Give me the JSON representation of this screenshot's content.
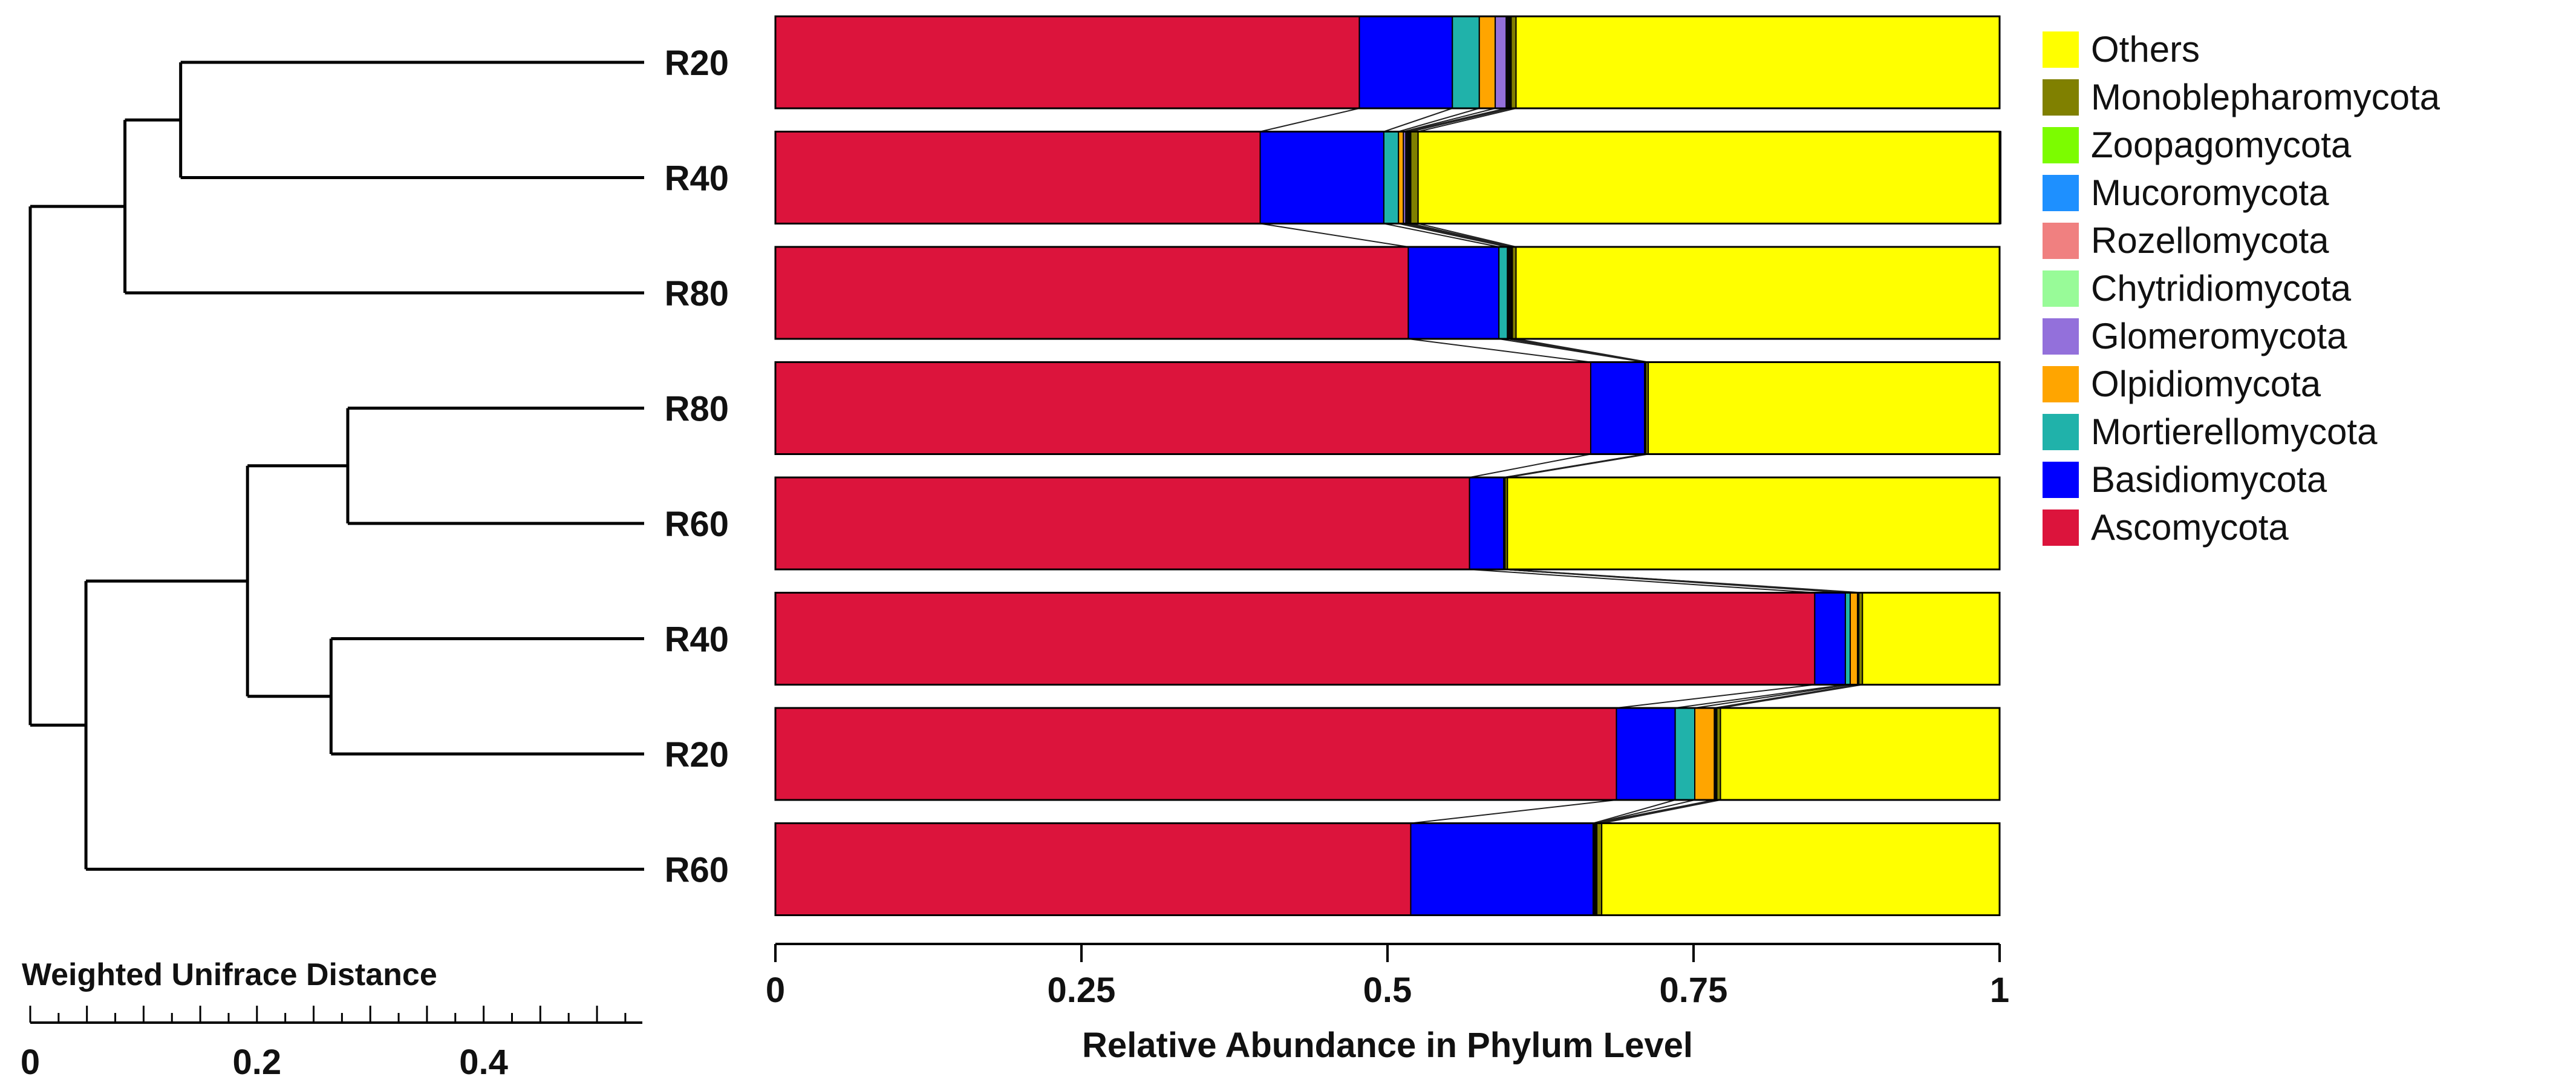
{
  "chart_data": {
    "type": "bar",
    "orientation": "horizontal",
    "stacked": true,
    "xlabel": "Relative Abundance in Phylum Level",
    "xlim": [
      0,
      1
    ],
    "xticks": [
      "0",
      "0.25",
      "0.5",
      "0.75",
      "1"
    ],
    "samples": [
      "R20",
      "R40",
      "R80",
      "R80",
      "R60",
      "R40",
      "R20",
      "R60"
    ],
    "series": [
      {
        "name": "Ascomycota",
        "color": "#DC143C",
        "values": [
          0.477,
          0.396,
          0.517,
          0.666,
          0.567,
          0.849,
          0.687,
          0.519
        ]
      },
      {
        "name": "Basidiomycota",
        "color": "#0000FF",
        "values": [
          0.076,
          0.101,
          0.074,
          0.044,
          0.028,
          0.025,
          0.048,
          0.149
        ]
      },
      {
        "name": "Mortierellomycota",
        "color": "#20B2AA",
        "values": [
          0.022,
          0.012,
          0.007,
          0.001,
          0.001,
          0.004,
          0.016,
          0.001
        ]
      },
      {
        "name": "Olpidiomycota",
        "color": "#FFA500",
        "values": [
          0.013,
          0.004,
          0.001,
          0.0,
          0.0,
          0.006,
          0.016,
          0.001
        ]
      },
      {
        "name": "Glomeromycota",
        "color": "#9370DB",
        "values": [
          0.009,
          0.002,
          0.001,
          0.0,
          0.0,
          0.0,
          0.001,
          0.0
        ]
      },
      {
        "name": "Chytridiomycota",
        "color": "#98FB98",
        "values": [
          0.001,
          0.001,
          0.001,
          0.0,
          0.0,
          0.001,
          0.001,
          0.001
        ]
      },
      {
        "name": "Rozellomycota",
        "color": "#F08080",
        "values": [
          0.001,
          0.001,
          0.001,
          0.0,
          0.0,
          0.0,
          0.0,
          0.0
        ]
      },
      {
        "name": "Mucoromycota",
        "color": "#1E90FF",
        "values": [
          0.001,
          0.001,
          0.0,
          0.0,
          0.0,
          0.0,
          0.0,
          0.0
        ]
      },
      {
        "name": "Zoopagomycota",
        "color": "#7CFC00",
        "values": [
          0.001,
          0.001,
          0.0,
          0.0,
          0.0,
          0.0,
          0.0,
          0.0
        ]
      },
      {
        "name": "Monoblepharomycota",
        "color": "#808000",
        "values": [
          0.004,
          0.006,
          0.003,
          0.002,
          0.002,
          0.003,
          0.003,
          0.004
        ]
      },
      {
        "name": "Others",
        "color": "#FFFF00",
        "values": [
          0.395,
          0.476,
          0.395,
          0.287,
          0.402,
          0.112,
          0.228,
          0.325
        ]
      }
    ],
    "legend": [
      "Others",
      "Monoblepharomycota",
      "Zoopagomycota",
      "Mucoromycota",
      "Rozellomycota",
      "Chytridiomycota",
      "Glomeromycota",
      "Olpidiomycota",
      "Mortierellomycota",
      "Basidiomycota",
      "Ascomycota"
    ],
    "legend_position": "right",
    "grid": false
  },
  "dendrogram": {
    "title": "Weighted Unifrace Distance",
    "scale_ticks": [
      "0",
      "0.2",
      "0.4"
    ],
    "scale_range": [
      0,
      0.54
    ],
    "tree": {
      "h": 0.0,
      "children": [
        {
          "h": 0.085,
          "children": [
            {
              "h": 0.135,
              "children": [
                {
                  "leaf": 0
                },
                {
                  "leaf": 1
                }
              ]
            },
            {
              "leaf": 2
            }
          ]
        },
        {
          "h": 0.05,
          "children": [
            {
              "h": 0.195,
              "children": [
                {
                  "h": 0.285,
                  "children": [
                    {
                      "leaf": 3
                    },
                    {
                      "leaf": 4
                    }
                  ]
                },
                {
                  "h": 0.27,
                  "children": [
                    {
                      "leaf": 5
                    },
                    {
                      "leaf": 6
                    }
                  ]
                }
              ]
            },
            {
              "leaf": 7
            }
          ]
        }
      ]
    }
  }
}
